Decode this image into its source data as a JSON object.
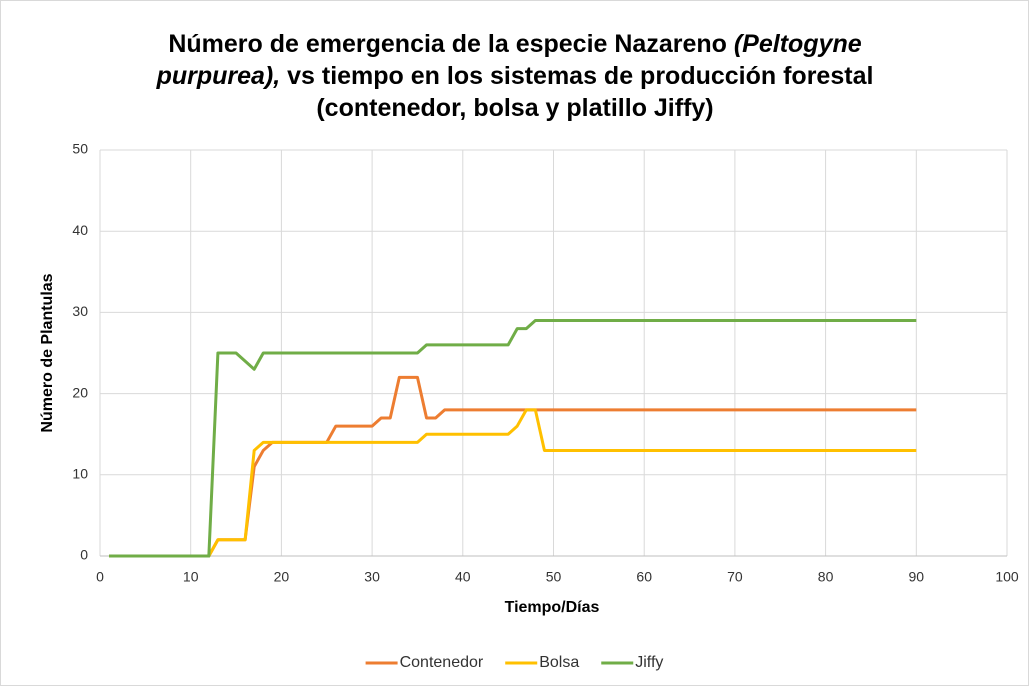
{
  "chart_data": {
    "type": "line",
    "title": [
      "Número de emergencia de la especie Nazareno ",
      "(Peltogyne purpurea),",
      " vs tiempo en los sistemas de producción forestal (contenedor, bolsa y platillo Jiffy)"
    ],
    "x_label": "Tiempo/Días",
    "y_label": "Número de Plantulas",
    "x": [
      1,
      2,
      3,
      4,
      5,
      6,
      7,
      8,
      9,
      10,
      11,
      12,
      13,
      14,
      15,
      16,
      17,
      18,
      19,
      20,
      21,
      22,
      23,
      24,
      25,
      26,
      27,
      28,
      29,
      30,
      31,
      32,
      33,
      34,
      35,
      36,
      37,
      38,
      39,
      40,
      41,
      42,
      43,
      44,
      45,
      46,
      47,
      48,
      49,
      50,
      51,
      52,
      53,
      54,
      55,
      56,
      57,
      58,
      59,
      60,
      61,
      62,
      63,
      64,
      65,
      66,
      67,
      68,
      69,
      70,
      71,
      72,
      73,
      74,
      75,
      76,
      77,
      78,
      79,
      80,
      81,
      82,
      83,
      84,
      85,
      86,
      87,
      88,
      89,
      90
    ],
    "series": [
      {
        "name": "Contenedor",
        "color": "#ed7d31",
        "values": [
          0,
          0,
          0,
          0,
          0,
          0,
          0,
          0,
          0,
          0,
          0,
          0,
          2,
          2,
          2,
          2,
          11,
          13,
          14,
          14,
          14,
          14,
          14,
          14,
          14,
          16,
          16,
          16,
          16,
          16,
          17,
          17,
          22,
          22,
          22,
          17,
          17,
          18,
          18,
          18,
          18,
          18,
          18,
          18,
          18,
          18,
          18,
          18,
          18,
          18,
          18,
          18,
          18,
          18,
          18,
          18,
          18,
          18,
          18,
          18,
          18,
          18,
          18,
          18,
          18,
          18,
          18,
          18,
          18,
          18,
          18,
          18,
          18,
          18,
          18,
          18,
          18,
          18,
          18,
          18,
          18,
          18,
          18,
          18,
          18,
          18,
          18,
          18,
          18,
          18
        ]
      },
      {
        "name": "Bolsa",
        "color": "#ffc000",
        "values": [
          0,
          0,
          0,
          0,
          0,
          0,
          0,
          0,
          0,
          0,
          0,
          0,
          2,
          2,
          2,
          2,
          13,
          14,
          14,
          14,
          14,
          14,
          14,
          14,
          14,
          14,
          14,
          14,
          14,
          14,
          14,
          14,
          14,
          14,
          14,
          15,
          15,
          15,
          15,
          15,
          15,
          15,
          15,
          15,
          15,
          16,
          18,
          18,
          13,
          13,
          13,
          13,
          13,
          13,
          13,
          13,
          13,
          13,
          13,
          13,
          13,
          13,
          13,
          13,
          13,
          13,
          13,
          13,
          13,
          13,
          13,
          13,
          13,
          13,
          13,
          13,
          13,
          13,
          13,
          13,
          13,
          13,
          13,
          13,
          13,
          13,
          13,
          13,
          13,
          13
        ]
      },
      {
        "name": "Jiffy",
        "color": "#70ad47",
        "values": [
          0,
          0,
          0,
          0,
          0,
          0,
          0,
          0,
          0,
          0,
          0,
          0,
          25,
          25,
          25,
          24,
          23,
          25,
          25,
          25,
          25,
          25,
          25,
          25,
          25,
          25,
          25,
          25,
          25,
          25,
          25,
          25,
          25,
          25,
          25,
          26,
          26,
          26,
          26,
          26,
          26,
          26,
          26,
          26,
          26,
          28,
          28,
          29,
          29,
          29,
          29,
          29,
          29,
          29,
          29,
          29,
          29,
          29,
          29,
          29,
          29,
          29,
          29,
          29,
          29,
          29,
          29,
          29,
          29,
          29,
          29,
          29,
          29,
          29,
          29,
          29,
          29,
          29,
          29,
          29,
          29,
          29,
          29,
          29,
          29,
          29,
          29,
          29,
          29,
          29
        ]
      }
    ],
    "xlim": [
      0,
      100
    ],
    "xticks": [
      0,
      10,
      20,
      30,
      40,
      50,
      60,
      70,
      80,
      90,
      100
    ],
    "ylim": [
      0,
      50
    ],
    "yticks": [
      0,
      10,
      20,
      30,
      40,
      50
    ],
    "grid": true,
    "legend": "bottom"
  }
}
